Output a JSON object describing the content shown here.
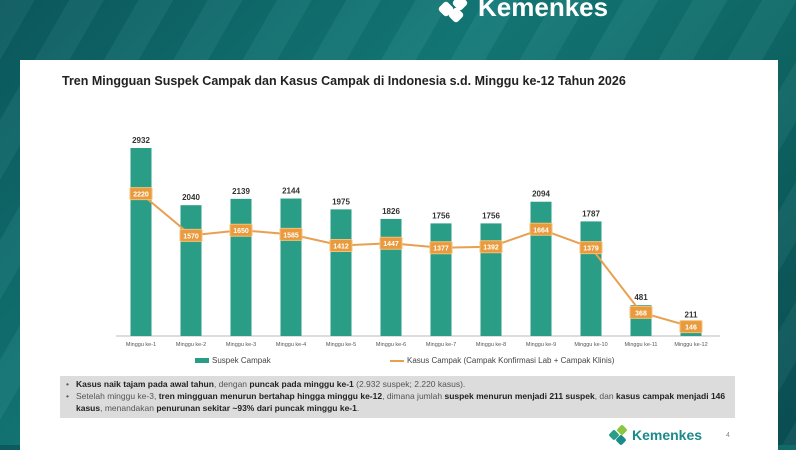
{
  "brand": {
    "name": "Kemenkes",
    "page_number": "4"
  },
  "notes": [
    {
      "parts": [
        {
          "t": "Kasus naik tajam pada awal tahun",
          "b": true
        },
        {
          "t": ", dengan ",
          "b": false
        },
        {
          "t": "puncak pada minggu ke-1",
          "b": true
        },
        {
          "t": " (2.932 suspek; 2.220 kasus).",
          "b": false
        }
      ]
    },
    {
      "parts": [
        {
          "t": "Setelah minggu ke-3, ",
          "b": false
        },
        {
          "t": "tren mingguan menurun bertahap hingga minggu ke-12",
          "b": true
        },
        {
          "t": ", dimana jumlah ",
          "b": false
        },
        {
          "t": "suspek menurun menjadi 211 suspek",
          "b": true
        },
        {
          "t": ", dan ",
          "b": false
        },
        {
          "t": "kasus campak menjadi 146 kasus",
          "b": true
        },
        {
          "t": ", menandakan ",
          "b": false
        },
        {
          "t": "penurunan sekitar ~93% dari puncak minggu ke-1",
          "b": true
        },
        {
          "t": ".",
          "b": false
        }
      ]
    }
  ],
  "chart_data": {
    "type": "bar",
    "title": "Tren Mingguan Suspek Campak dan Kasus Campak di Indonesia s.d. Minggu ke-12 Tahun 2026",
    "categories": [
      "Minggu ke-1",
      "Minggu ke-2",
      "Minggu ke-3",
      "Minggu ke-4",
      "Minggu ke-5",
      "Minggu ke-6",
      "Minggu ke-7",
      "Minggu ke-8",
      "Minggu ke-9",
      "Minggu ke-10",
      "Minggu ke-11",
      "Minggu ke-12"
    ],
    "series": [
      {
        "name": "Suspek Campak",
        "type": "bar",
        "color": "#2a9d86",
        "values": [
          2932,
          2040,
          2139,
          2144,
          1975,
          1826,
          1756,
          1756,
          2094,
          1787,
          481,
          211
        ]
      },
      {
        "name": "Kasus Campak (Campak Konfirmasi Lab + Campak Klinis)",
        "type": "line",
        "color": "#e8a050",
        "values": [
          2220,
          1570,
          1650,
          1585,
          1412,
          1447,
          1377,
          1392,
          1664,
          1379,
          368,
          146
        ]
      }
    ],
    "ylim": [
      0,
      3000
    ],
    "legend": "bottom",
    "grid": false
  }
}
